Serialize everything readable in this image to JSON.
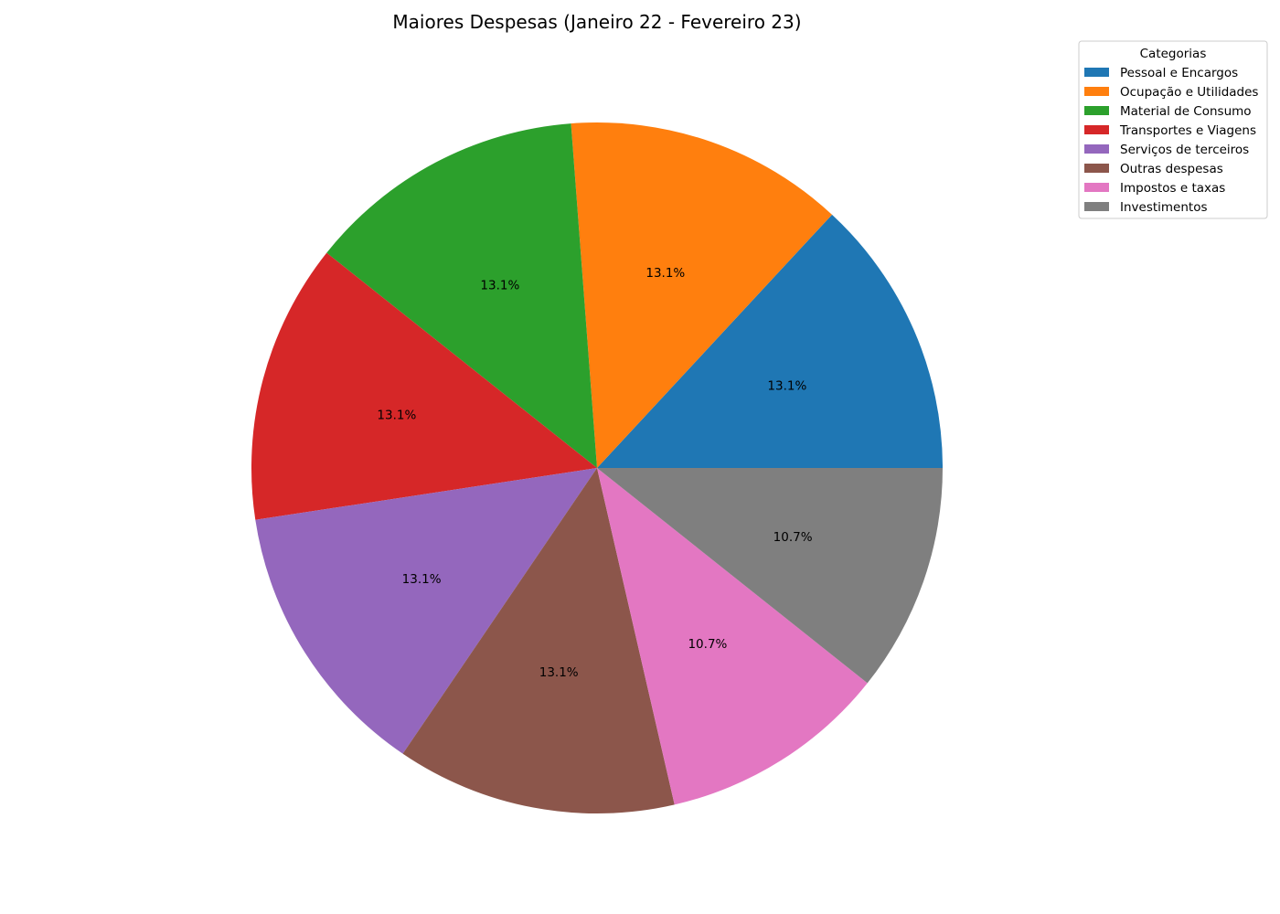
{
  "chart_data": {
    "type": "pie",
    "title": "Maiores Despesas (Janeiro 22 - Fevereiro 23)",
    "legend_title": "Categorias",
    "legend_placement": "top-right",
    "start_angle": 0,
    "direction": "counterclockwise",
    "slices": [
      {
        "label": "Pessoal e Encargos",
        "value": 13.1,
        "pct_label": "13.1%",
        "color": "#1f77b4"
      },
      {
        "label": "Ocupação e Utilidades",
        "value": 13.1,
        "pct_label": "13.1%",
        "color": "#ff7f0e"
      },
      {
        "label": "Material de Consumo",
        "value": 13.1,
        "pct_label": "13.1%",
        "color": "#2ca02c"
      },
      {
        "label": "Transportes e Viagens",
        "value": 13.1,
        "pct_label": "13.1%",
        "color": "#d62728"
      },
      {
        "label": "Serviços de terceiros",
        "value": 13.1,
        "pct_label": "13.1%",
        "color": "#9467bd"
      },
      {
        "label": "Outras despesas",
        "value": 13.1,
        "pct_label": "13.1%",
        "color": "#8c564b"
      },
      {
        "label": "Impostos e taxas",
        "value": 10.7,
        "pct_label": "10.7%",
        "color": "#e377c2"
      },
      {
        "label": "Investimentos",
        "value": 10.7,
        "pct_label": "10.7%",
        "color": "#7f7f7f"
      }
    ]
  }
}
